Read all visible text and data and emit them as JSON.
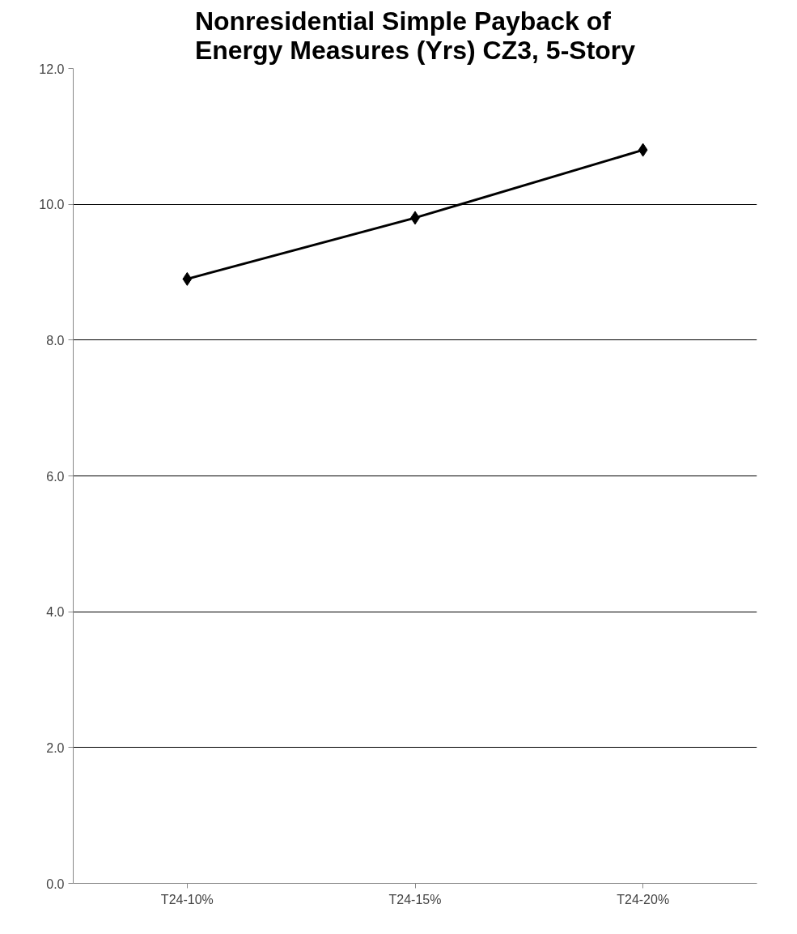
{
  "chart_data": {
    "type": "line",
    "title": "Nonresidential Simple Payback of Energy Measures (Yrs) CZ3, 5-Story",
    "categories": [
      "T24-10%",
      "T24-15%",
      "T24-20%"
    ],
    "series": [
      {
        "color": "#000000",
        "values": [
          8.9,
          9.8,
          10.8
        ]
      }
    ],
    "ylim": [
      0,
      12
    ],
    "yticks": [
      {
        "value": 0,
        "label": "0.0"
      },
      {
        "value": 2,
        "label": "2.0"
      },
      {
        "value": 4,
        "label": "4.0"
      },
      {
        "value": 6,
        "label": "6.0"
      },
      {
        "value": 8,
        "label": "8.0"
      },
      {
        "value": 10,
        "label": "10.0"
      },
      {
        "value": 12,
        "label": "12.0"
      }
    ],
    "grid": "y",
    "marker": "diamond",
    "line_style": "solid"
  }
}
